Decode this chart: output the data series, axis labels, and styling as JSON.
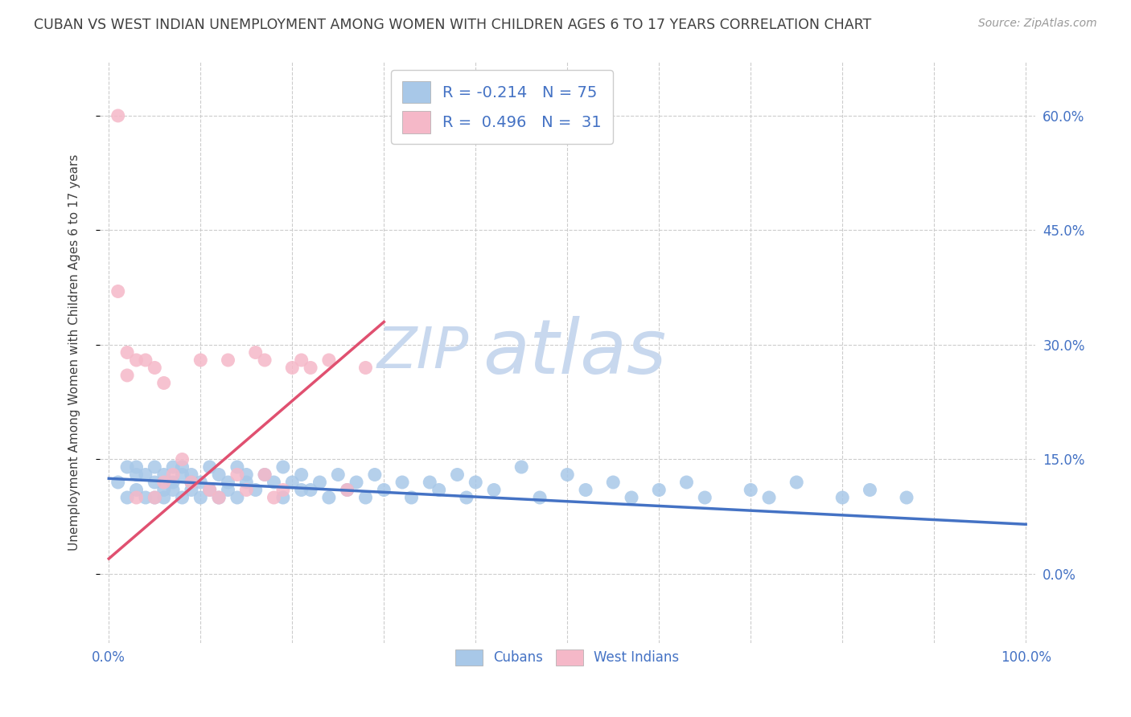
{
  "title": "CUBAN VS WEST INDIAN UNEMPLOYMENT AMONG WOMEN WITH CHILDREN AGES 6 TO 17 YEARS CORRELATION CHART",
  "source": "Source: ZipAtlas.com",
  "ylabel": "Unemployment Among Women with Children Ages 6 to 17 years",
  "xlim": [
    -1,
    101
  ],
  "ylim": [
    -9,
    67
  ],
  "yticks": [
    0,
    15,
    30,
    45,
    60
  ],
  "ytick_labels": [
    "0.0%",
    "15.0%",
    "30.0%",
    "45.0%",
    "60.0%"
  ],
  "xtick_labels": [
    "0.0%",
    "100.0%"
  ],
  "xtick_positions": [
    0,
    100
  ],
  "cubans_R": -0.214,
  "cubans_N": 75,
  "west_indians_R": 0.496,
  "west_indians_N": 31,
  "blue_scatter_color": "#a8c8e8",
  "pink_scatter_color": "#f5b8c8",
  "blue_line_color": "#4472c4",
  "pink_line_color": "#e05070",
  "legend_text_color": "#4472c4",
  "title_color": "#404040",
  "source_color": "#999999",
  "background_color": "#ffffff",
  "watermark_zip_color": "#c8d8ee",
  "watermark_atlas_color": "#c8d8ee",
  "grid_color": "#cccccc",
  "cubans_x": [
    1,
    2,
    2,
    3,
    3,
    3,
    4,
    4,
    5,
    5,
    5,
    6,
    6,
    6,
    7,
    7,
    7,
    8,
    8,
    8,
    9,
    9,
    9,
    10,
    10,
    11,
    11,
    12,
    12,
    13,
    13,
    14,
    14,
    15,
    15,
    16,
    17,
    18,
    19,
    19,
    20,
    21,
    21,
    22,
    23,
    24,
    25,
    26,
    27,
    28,
    29,
    30,
    32,
    33,
    35,
    36,
    38,
    39,
    40,
    42,
    45,
    47,
    50,
    52,
    55,
    57,
    60,
    63,
    65,
    70,
    72,
    75,
    80,
    83,
    87
  ],
  "cubans_y": [
    12,
    14,
    10,
    13,
    11,
    14,
    10,
    13,
    12,
    10,
    14,
    11,
    13,
    10,
    12,
    14,
    11,
    13,
    10,
    14,
    12,
    11,
    13,
    10,
    12,
    14,
    11,
    13,
    10,
    12,
    11,
    14,
    10,
    13,
    12,
    11,
    13,
    12,
    10,
    14,
    12,
    11,
    13,
    11,
    12,
    10,
    13,
    11,
    12,
    10,
    13,
    11,
    12,
    10,
    12,
    11,
    13,
    10,
    12,
    11,
    14,
    10,
    13,
    11,
    12,
    10,
    11,
    12,
    10,
    11,
    10,
    12,
    10,
    11,
    10
  ],
  "west_indians_x": [
    1,
    1,
    2,
    2,
    3,
    3,
    4,
    5,
    5,
    6,
    6,
    7,
    8,
    9,
    10,
    11,
    12,
    13,
    14,
    15,
    16,
    17,
    17,
    18,
    19,
    20,
    21,
    22,
    24,
    26,
    28
  ],
  "west_indians_y": [
    60,
    37,
    29,
    26,
    28,
    10,
    28,
    10,
    27,
    12,
    25,
    13,
    15,
    12,
    28,
    11,
    10,
    28,
    13,
    11,
    29,
    13,
    28,
    10,
    11,
    27,
    28,
    27,
    28,
    11,
    27
  ],
  "blue_trend_x0": 0,
  "blue_trend_x1": 100,
  "blue_trend_y0": 12.5,
  "blue_trend_y1": 6.5,
  "pink_trend_x0": 0,
  "pink_trend_x1": 30,
  "pink_trend_y0": 2,
  "pink_trend_y1": 33
}
